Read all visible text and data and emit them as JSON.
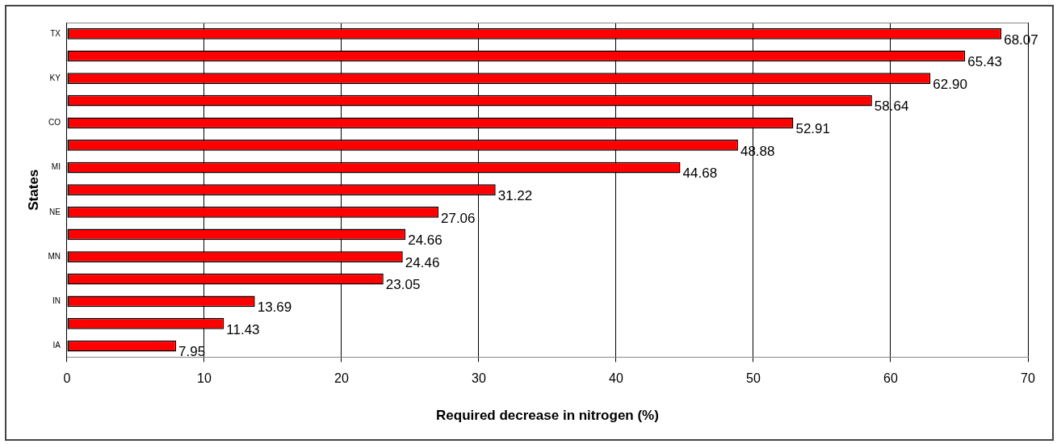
{
  "chart_data": {
    "type": "bar",
    "orientation": "horizontal",
    "xlabel": "Required decrease in nitrogen (%)",
    "ylabel": "States",
    "categories": [
      "TX",
      null,
      "KY",
      null,
      "CO",
      null,
      "MI",
      null,
      "NE",
      null,
      "MN",
      null,
      "IN",
      null,
      "IA"
    ],
    "values": [
      68.07,
      65.43,
      62.9,
      58.64,
      52.91,
      48.88,
      44.68,
      31.22,
      27.06,
      24.66,
      24.46,
      23.05,
      13.69,
      11.43,
      7.95
    ],
    "value_labels": [
      "68.07",
      "65.43",
      "62.90",
      "58.64",
      "52.91",
      "48.88",
      "44.68",
      "31.22",
      "27.06",
      "24.66",
      "24.46",
      "23.05",
      "13.69",
      "11.43",
      "7.95"
    ],
    "color": "#ff0000",
    "xlim": [
      0,
      70
    ],
    "xticks": [
      0,
      10,
      20,
      30,
      40,
      50,
      60,
      70
    ],
    "grid": "x"
  }
}
